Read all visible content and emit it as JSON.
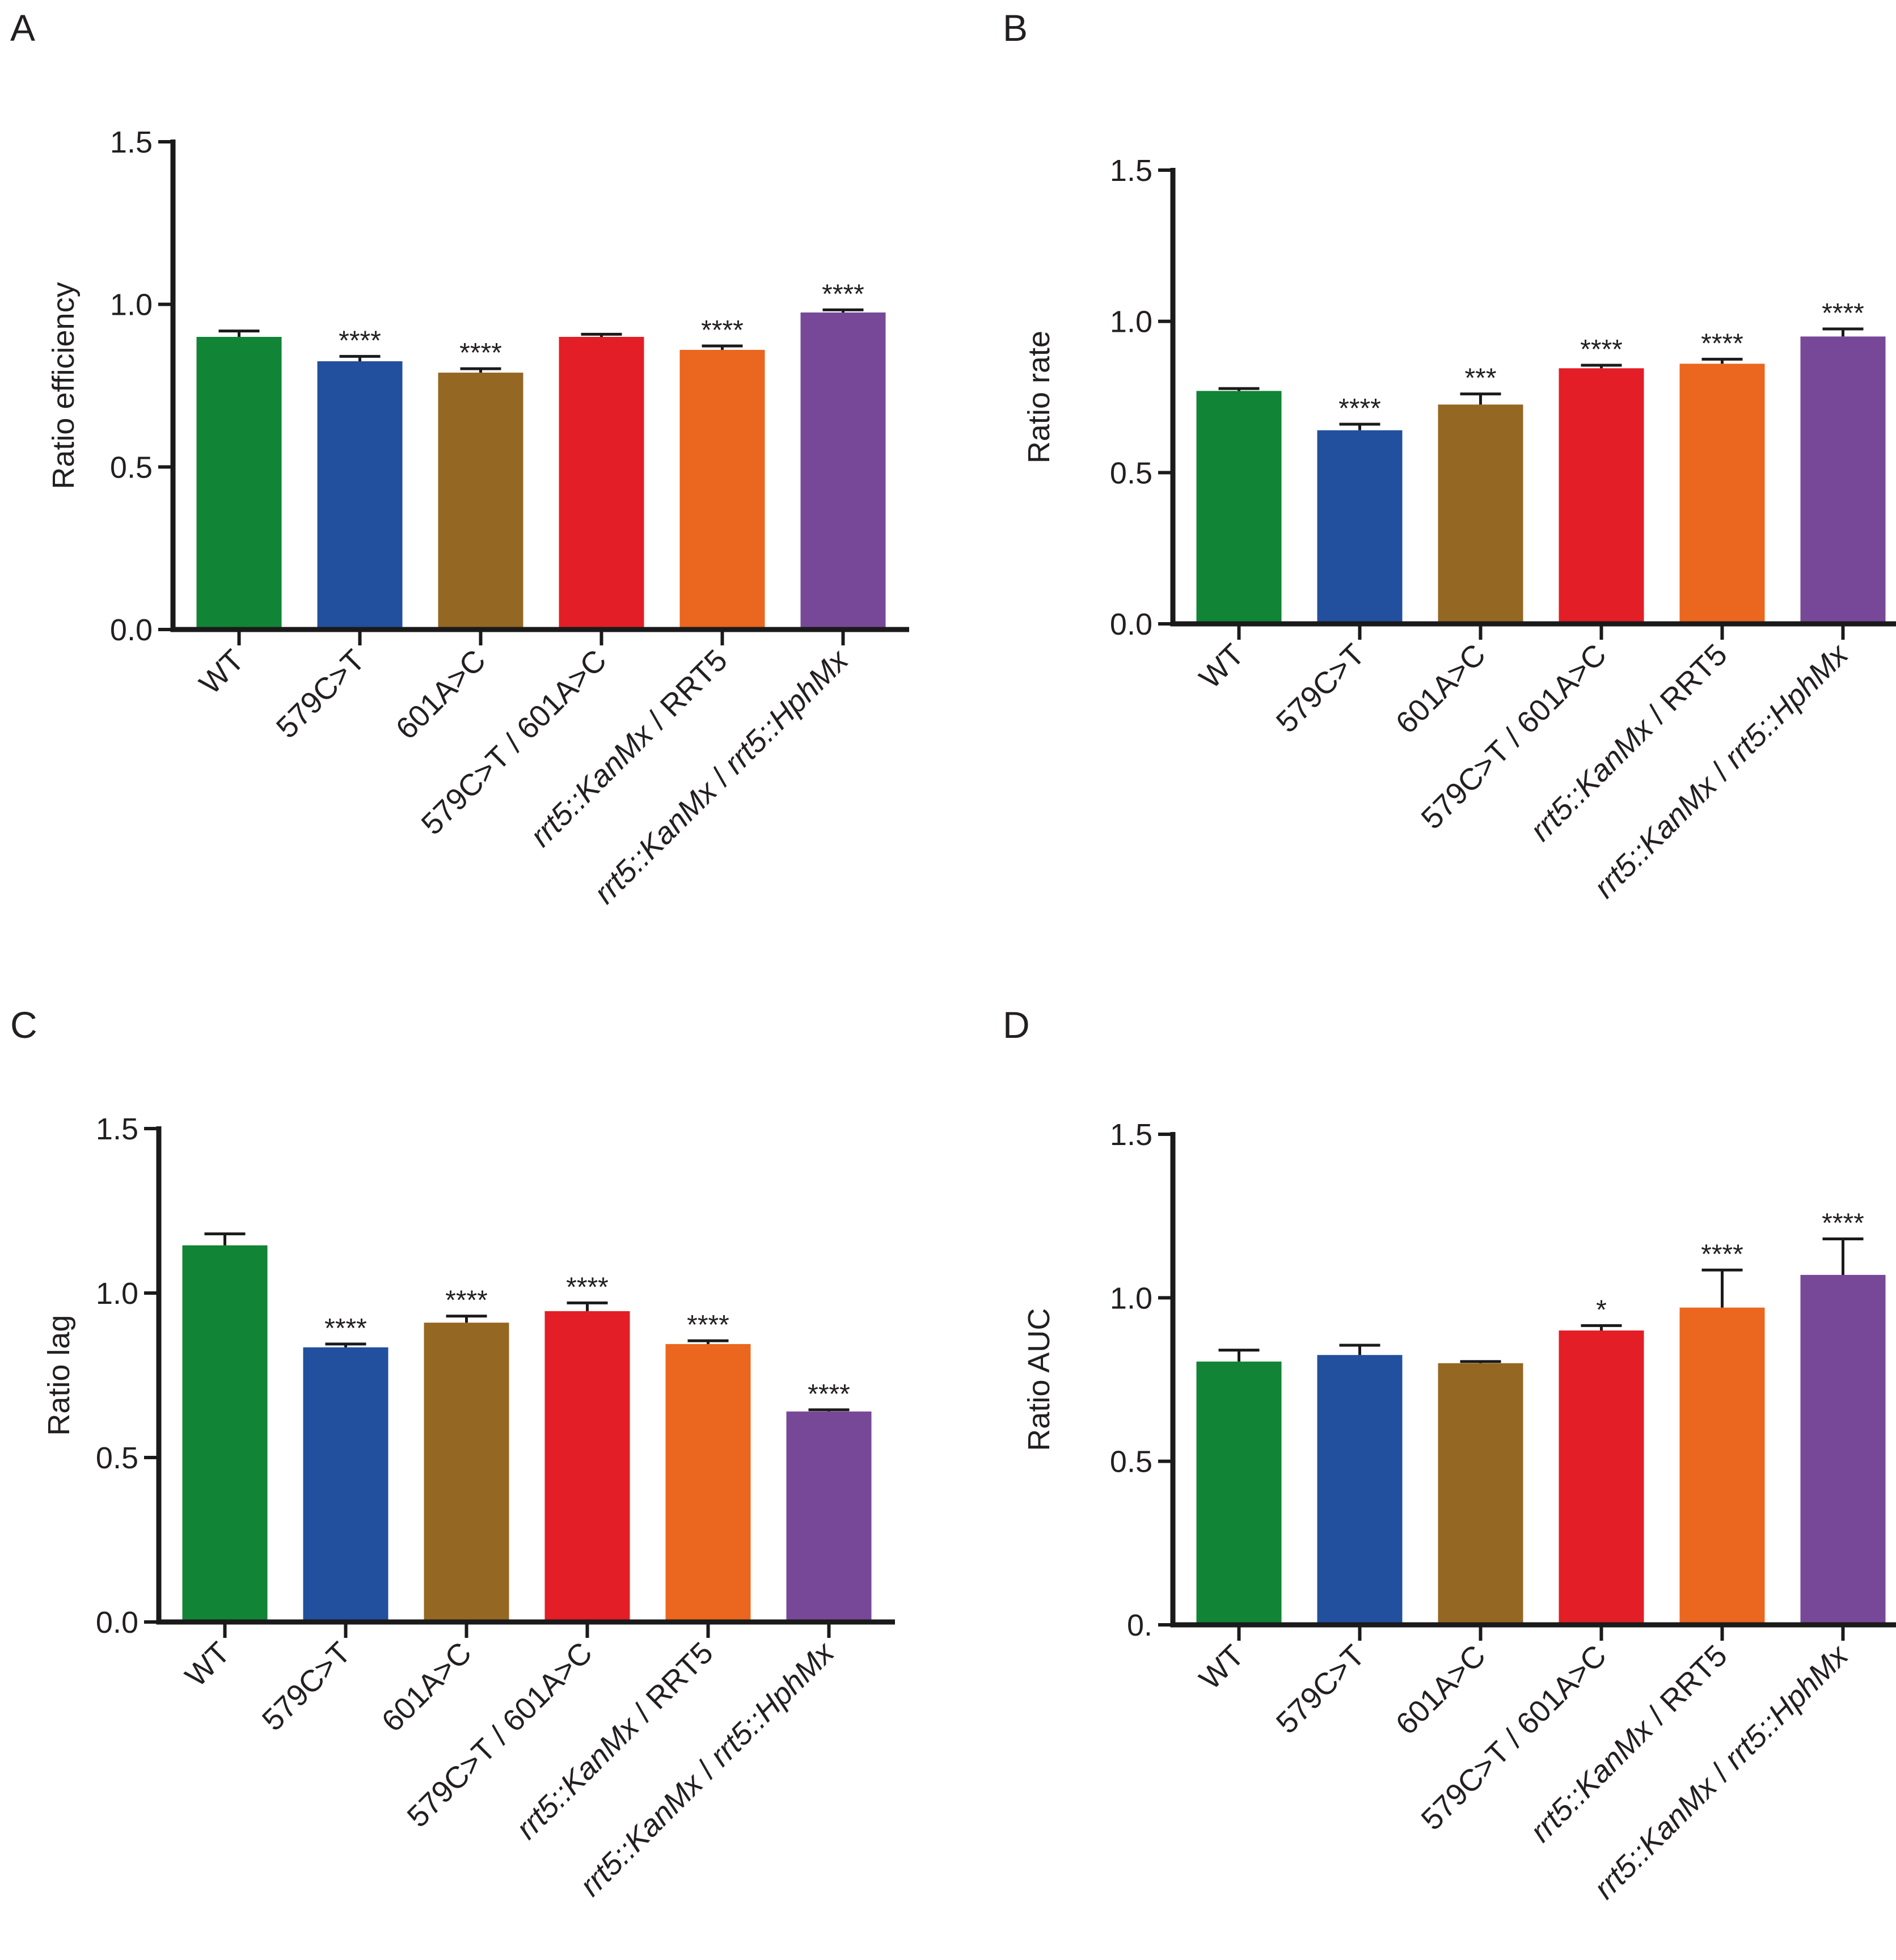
{
  "figure": {
    "panel_letters": [
      "A",
      "B",
      "C",
      "D"
    ]
  },
  "colors": {
    "axis": "#1a1a1a",
    "text": "#231f20",
    "bars": [
      "#118436",
      "#224f9e",
      "#946723",
      "#e31e26",
      "#eb661e",
      "#784898"
    ]
  },
  "chart_data": [
    {
      "type": "bar",
      "panel": "A",
      "title": "",
      "xlabel": "",
      "ylabel": "Ratio efficiency",
      "ylim": [
        0,
        1.5
      ],
      "yticks": [
        "0.0",
        "0.5",
        "1.0",
        "1.5"
      ],
      "categories": [
        [
          {
            "t": "WT",
            "i": false
          }
        ],
        [
          {
            "t": "579C>T",
            "i": false
          }
        ],
        [
          {
            "t": "601A>C",
            "i": false
          }
        ],
        [
          {
            "t": "579C>T / 601A>C",
            "i": false
          }
        ],
        [
          {
            "t": "rrt5::KanMx",
            "i": true
          },
          {
            "t": " / RRT5",
            "i": false
          }
        ],
        [
          {
            "t": "rrt5::KanMx",
            "i": true
          },
          {
            "t": " / ",
            "i": false
          },
          {
            "t": "rrt5::HphMx",
            "i": true
          }
        ]
      ],
      "values": [
        0.9,
        0.825,
        0.79,
        0.9,
        0.86,
        0.975
      ],
      "errors": [
        0.018,
        0.015,
        0.012,
        0.008,
        0.012,
        0.008
      ],
      "significance": [
        "",
        "****",
        "****",
        "",
        "****",
        "****"
      ]
    },
    {
      "type": "bar",
      "panel": "B",
      "title": "",
      "xlabel": "",
      "ylabel": "Ratio rate",
      "ylim": [
        0,
        1.5
      ],
      "yticks": [
        "0.0",
        "0.5",
        "1.0",
        "1.5"
      ],
      "categories": [
        [
          {
            "t": "WT",
            "i": false
          }
        ],
        [
          {
            "t": "579C>T",
            "i": false
          }
        ],
        [
          {
            "t": "601A>C",
            "i": false
          }
        ],
        [
          {
            "t": "579C>T / 601A>C",
            "i": false
          }
        ],
        [
          {
            "t": "rrt5::KanMx",
            "i": true
          },
          {
            "t": " / RRT5",
            "i": false
          }
        ],
        [
          {
            "t": "rrt5::KanMx",
            "i": true
          },
          {
            "t": " / ",
            "i": false
          },
          {
            "t": "rrt5::HphMx",
            "i": true
          }
        ]
      ],
      "values": [
        0.77,
        0.64,
        0.725,
        0.845,
        0.86,
        0.95
      ],
      "errors": [
        0.008,
        0.02,
        0.035,
        0.01,
        0.015,
        0.025
      ],
      "significance": [
        "",
        "****",
        "***",
        "****",
        "****",
        "****"
      ]
    },
    {
      "type": "bar",
      "panel": "C",
      "title": "",
      "xlabel": "",
      "ylabel": "Ratio lag",
      "ylim": [
        0,
        1.5
      ],
      "yticks": [
        "0.0",
        "0.5",
        "1.0",
        "1.5"
      ],
      "categories": [
        [
          {
            "t": "WT",
            "i": false
          }
        ],
        [
          {
            "t": "579C>T",
            "i": false
          }
        ],
        [
          {
            "t": "601A>C",
            "i": false
          }
        ],
        [
          {
            "t": "579C>T / 601A>C",
            "i": false
          }
        ],
        [
          {
            "t": "rrt5::KanMx",
            "i": true
          },
          {
            "t": " / RRT5",
            "i": false
          }
        ],
        [
          {
            "t": "rrt5::KanMx",
            "i": true
          },
          {
            "t": " / ",
            "i": false
          },
          {
            "t": "rrt5::HphMx",
            "i": true
          }
        ]
      ],
      "values": [
        1.145,
        0.835,
        0.91,
        0.945,
        0.845,
        0.64
      ],
      "errors": [
        0.035,
        0.01,
        0.02,
        0.025,
        0.01,
        0.005
      ],
      "significance": [
        "",
        "****",
        "****",
        "****",
        "****",
        "****"
      ]
    },
    {
      "type": "bar",
      "panel": "D",
      "title": "",
      "xlabel": "",
      "ylabel": "Ratio AUC",
      "ylim": [
        0,
        1.5
      ],
      "yticks": [
        "0.",
        "0.5",
        "1.0",
        "1.5"
      ],
      "categories": [
        [
          {
            "t": "WT",
            "i": false
          }
        ],
        [
          {
            "t": "579C>T",
            "i": false
          }
        ],
        [
          {
            "t": "601A>C",
            "i": false
          }
        ],
        [
          {
            "t": "579C>T / 601A>C",
            "i": false
          }
        ],
        [
          {
            "t": "rrt5::KanMx",
            "i": true
          },
          {
            "t": " / RRT5",
            "i": false
          }
        ],
        [
          {
            "t": "rrt5::KanMx",
            "i": true
          },
          {
            "t": " / ",
            "i": false
          },
          {
            "t": "rrt5::HphMx",
            "i": true
          }
        ]
      ],
      "values": [
        0.805,
        0.825,
        0.8,
        0.9,
        0.97,
        1.07
      ],
      "errors": [
        0.035,
        0.03,
        0.005,
        0.015,
        0.115,
        0.11
      ],
      "significance": [
        "",
        "",
        "",
        "*",
        "****",
        "****"
      ]
    }
  ]
}
